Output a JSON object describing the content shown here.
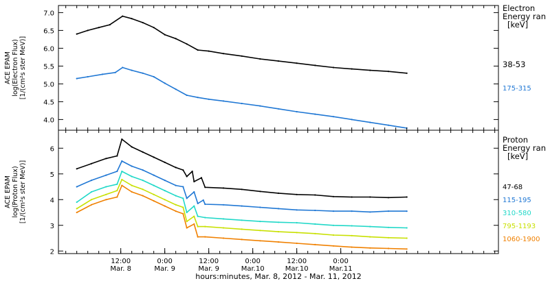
{
  "chart_data": [
    {
      "type": "line",
      "panel": "electron",
      "ylabel": [
        "ACE EPAM",
        "log(Electron Flux)",
        "[1/(cm²s ster MeV)]"
      ],
      "yticks": [
        "7.0",
        "6.5",
        "6.0",
        "5.5",
        "5.0",
        "4.5",
        "4.0"
      ],
      "ylim": [
        3.7,
        7.2
      ],
      "legend_title": [
        "Electron",
        "Energy ran",
        "[keV]"
      ],
      "series": [
        {
          "name": "38-53",
          "color": "#000000",
          "points": [
            [
              0.0,
              6.4
            ],
            [
              3.0,
              6.5
            ],
            [
              6.0,
              6.58
            ],
            [
              9.0,
              6.66
            ],
            [
              12.5,
              6.9
            ],
            [
              15.0,
              6.83
            ],
            [
              18.0,
              6.72
            ],
            [
              21.0,
              6.58
            ],
            [
              24.0,
              6.38
            ],
            [
              27.0,
              6.27
            ],
            [
              30.0,
              6.12
            ],
            [
              33.0,
              5.95
            ],
            [
              36.0,
              5.92
            ],
            [
              40.0,
              5.85
            ],
            [
              45.0,
              5.78
            ],
            [
              50.0,
              5.7
            ],
            [
              55.0,
              5.64
            ],
            [
              60.0,
              5.58
            ],
            [
              65.0,
              5.52
            ],
            [
              70.0,
              5.46
            ],
            [
              75.0,
              5.42
            ],
            [
              80.0,
              5.38
            ],
            [
              85.0,
              5.35
            ],
            [
              90.0,
              5.3
            ]
          ]
        },
        {
          "name": "175-315",
          "color": "#1f77d4",
          "points": [
            [
              0.0,
              5.15
            ],
            [
              3.0,
              5.2
            ],
            [
              7.0,
              5.27
            ],
            [
              10.5,
              5.32
            ],
            [
              12.5,
              5.46
            ],
            [
              15.0,
              5.38
            ],
            [
              18.0,
              5.3
            ],
            [
              21.0,
              5.2
            ],
            [
              24.0,
              5.02
            ],
            [
              27.0,
              4.85
            ],
            [
              30.0,
              4.68
            ],
            [
              33.0,
              4.62
            ],
            [
              36.0,
              4.57
            ],
            [
              40.0,
              4.52
            ],
            [
              45.0,
              4.45
            ],
            [
              50.0,
              4.38
            ],
            [
              55.0,
              4.3
            ],
            [
              60.0,
              4.22
            ],
            [
              65.0,
              4.15
            ],
            [
              70.0,
              4.08
            ],
            [
              75.0,
              4.0
            ],
            [
              80.0,
              3.92
            ],
            [
              85.0,
              3.84
            ],
            [
              90.0,
              3.76
            ]
          ]
        }
      ]
    },
    {
      "type": "line",
      "panel": "proton",
      "ylabel": [
        "ACE EPAM",
        "log(Proton Flux)",
        "[1/(cm²s ster MeV)]"
      ],
      "yticks": [
        "6",
        "5",
        "4",
        "3",
        "2"
      ],
      "ylim": [
        1.9,
        6.7
      ],
      "legend_title": [
        "Proton",
        "Energy ran",
        "[keV]"
      ],
      "xlabel": "hours:minutes, Mar.  8, 2012 - Mar. 11, 2012",
      "xticks": [
        {
          "time": "12:00",
          "date": "Mar. 8"
        },
        {
          "time": "0:00",
          "date": "Mar. 9"
        },
        {
          "time": "12:00",
          "date": "Mar. 9"
        },
        {
          "time": "0:00",
          "date": "Mar.10"
        },
        {
          "time": "12:00",
          "date": "Mar.10"
        },
        {
          "time": "0:00",
          "date": "Mar.11"
        }
      ],
      "series": [
        {
          "name": "47-68",
          "color": "#000000",
          "points": [
            [
              0.0,
              5.2
            ],
            [
              4.0,
              5.4
            ],
            [
              8.0,
              5.6
            ],
            [
              11.0,
              5.7
            ],
            [
              12.3,
              6.35
            ],
            [
              15.0,
              6.05
            ],
            [
              18.0,
              5.85
            ],
            [
              21.0,
              5.65
            ],
            [
              24.0,
              5.45
            ],
            [
              27.0,
              5.25
            ],
            [
              29.0,
              5.15
            ],
            [
              30.0,
              4.9
            ],
            [
              31.5,
              5.1
            ],
            [
              32.0,
              4.7
            ],
            [
              34.0,
              4.85
            ],
            [
              35.0,
              4.48
            ],
            [
              40.0,
              4.45
            ],
            [
              45.0,
              4.4
            ],
            [
              50.0,
              4.32
            ],
            [
              55.0,
              4.25
            ],
            [
              60.0,
              4.2
            ],
            [
              65.0,
              4.18
            ],
            [
              70.0,
              4.12
            ],
            [
              75.0,
              4.1
            ],
            [
              80.0,
              4.1
            ],
            [
              85.0,
              4.08
            ],
            [
              90.0,
              4.1
            ]
          ]
        },
        {
          "name": "115-195",
          "color": "#1f77d4",
          "points": [
            [
              0.0,
              4.5
            ],
            [
              4.0,
              4.75
            ],
            [
              8.0,
              4.95
            ],
            [
              11.0,
              5.1
            ],
            [
              12.3,
              5.5
            ],
            [
              15.0,
              5.3
            ],
            [
              18.0,
              5.15
            ],
            [
              21.0,
              4.95
            ],
            [
              24.0,
              4.75
            ],
            [
              27.0,
              4.55
            ],
            [
              29.0,
              4.5
            ],
            [
              30.0,
              4.05
            ],
            [
              32.0,
              4.3
            ],
            [
              33.0,
              3.85
            ],
            [
              34.5,
              3.98
            ],
            [
              35.0,
              3.82
            ],
            [
              40.0,
              3.8
            ],
            [
              45.0,
              3.75
            ],
            [
              50.0,
              3.7
            ],
            [
              55.0,
              3.65
            ],
            [
              60.0,
              3.6
            ],
            [
              65.0,
              3.58
            ],
            [
              70.0,
              3.55
            ],
            [
              75.0,
              3.55
            ],
            [
              80.0,
              3.52
            ],
            [
              85.0,
              3.55
            ],
            [
              90.0,
              3.55
            ]
          ]
        },
        {
          "name": "310-580",
          "color": "#20d8c8",
          "points": [
            [
              0.0,
              3.9
            ],
            [
              4.0,
              4.3
            ],
            [
              8.0,
              4.5
            ],
            [
              11.0,
              4.6
            ],
            [
              12.3,
              5.1
            ],
            [
              15.0,
              4.9
            ],
            [
              18.0,
              4.75
            ],
            [
              21.0,
              4.55
            ],
            [
              24.0,
              4.35
            ],
            [
              27.0,
              4.15
            ],
            [
              29.0,
              4.05
            ],
            [
              30.0,
              3.5
            ],
            [
              32.0,
              3.75
            ],
            [
              33.0,
              3.35
            ],
            [
              35.0,
              3.3
            ],
            [
              40.0,
              3.25
            ],
            [
              45.0,
              3.2
            ],
            [
              50.0,
              3.15
            ],
            [
              55.0,
              3.12
            ],
            [
              60.0,
              3.1
            ],
            [
              65.0,
              3.05
            ],
            [
              70.0,
              3.0
            ],
            [
              75.0,
              2.98
            ],
            [
              80.0,
              2.95
            ],
            [
              85.0,
              2.92
            ],
            [
              90.0,
              2.9
            ]
          ]
        },
        {
          "name": "795-1193",
          "color": "#c8e000",
          "points": [
            [
              0.0,
              3.65
            ],
            [
              4.0,
              4.0
            ],
            [
              8.0,
              4.2
            ],
            [
              11.0,
              4.35
            ],
            [
              12.3,
              4.78
            ],
            [
              15.0,
              4.55
            ],
            [
              18.0,
              4.4
            ],
            [
              21.0,
              4.2
            ],
            [
              24.0,
              4.0
            ],
            [
              27.0,
              3.8
            ],
            [
              29.0,
              3.7
            ],
            [
              30.0,
              3.15
            ],
            [
              32.0,
              3.35
            ],
            [
              33.0,
              2.95
            ],
            [
              35.0,
              2.95
            ],
            [
              40.0,
              2.9
            ],
            [
              45.0,
              2.85
            ],
            [
              50.0,
              2.8
            ],
            [
              55.0,
              2.75
            ],
            [
              60.0,
              2.72
            ],
            [
              65.0,
              2.68
            ],
            [
              70.0,
              2.62
            ],
            [
              75.0,
              2.6
            ],
            [
              80.0,
              2.55
            ],
            [
              85.0,
              2.52
            ],
            [
              90.0,
              2.5
            ]
          ]
        },
        {
          "name": "1060-1900",
          "color": "#f08000",
          "points": [
            [
              0.0,
              3.5
            ],
            [
              4.0,
              3.8
            ],
            [
              8.0,
              4.0
            ],
            [
              11.0,
              4.1
            ],
            [
              12.3,
              4.55
            ],
            [
              15.0,
              4.3
            ],
            [
              18.0,
              4.15
            ],
            [
              21.0,
              3.95
            ],
            [
              24.0,
              3.75
            ],
            [
              27.0,
              3.55
            ],
            [
              29.0,
              3.45
            ],
            [
              30.0,
              2.9
            ],
            [
              32.0,
              3.05
            ],
            [
              33.0,
              2.55
            ],
            [
              35.0,
              2.55
            ],
            [
              40.0,
              2.5
            ],
            [
              45.0,
              2.45
            ],
            [
              50.0,
              2.4
            ],
            [
              55.0,
              2.35
            ],
            [
              60.0,
              2.3
            ],
            [
              65.0,
              2.25
            ],
            [
              70.0,
              2.2
            ],
            [
              75.0,
              2.15
            ],
            [
              80.0,
              2.12
            ],
            [
              85.0,
              2.1
            ],
            [
              90.0,
              2.08
            ]
          ]
        }
      ]
    }
  ]
}
